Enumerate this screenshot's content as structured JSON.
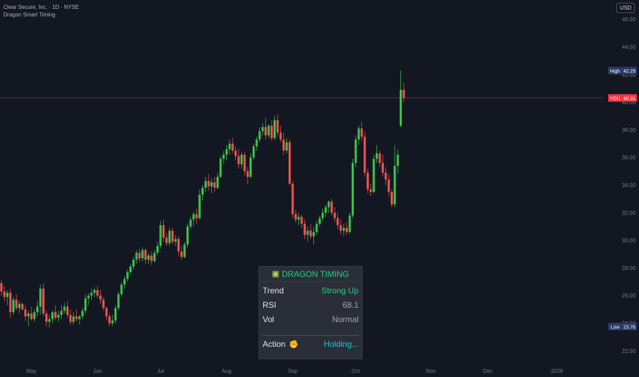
{
  "header": {
    "symbol_line": "Clear Secure, Inc. · 1D · NYSE",
    "indicator_name": "Dragon Smart Timing",
    "currency_label": "USD"
  },
  "colors": {
    "background": "#131722",
    "up": "#26a69a",
    "up_bright": "#3cc24a",
    "down": "#ef5350",
    "grid_text": "#787b86",
    "high_tag": "#2a3b68",
    "you_tag": "#f23645",
    "low_tag": "#2a3b68"
  },
  "price_tags": [
    {
      "label": "High",
      "value": "42.29",
      "kind": "high"
    },
    {
      "label": "YOU",
      "value": "40.31",
      "kind": "you"
    },
    {
      "label": "Low",
      "value": "23.76",
      "kind": "low"
    }
  ],
  "panel": {
    "title": "DRAGON TIMING",
    "title_icon": "dragon-icon",
    "rows": [
      {
        "key": "Trend",
        "value": "Strong Up",
        "color": "#26d07c"
      },
      {
        "key": "RSI",
        "value": "68.1",
        "color": "#a3a6af"
      },
      {
        "key": "Vol",
        "value": "Normal",
        "color": "#a3a6af"
      }
    ],
    "action_key": "Action",
    "action_icon": "raised-fist-icon",
    "action_value": "Holding...",
    "action_color": "#22c7d6"
  },
  "chart_data": {
    "type": "candlestick",
    "title": "Clear Secure, Inc. · 1D · NYSE",
    "ylim": [
      21,
      47.4
    ],
    "y_ticks": [
      22,
      24,
      26,
      28,
      30,
      32,
      34,
      36,
      38,
      40,
      42,
      44,
      46
    ],
    "x_ticks": [
      "May",
      "Jun",
      "Jul",
      "Aug",
      "Sep",
      "Oct",
      "Nov",
      "Dec",
      "2026"
    ],
    "x_tick_index": [
      10,
      32,
      53,
      75,
      97,
      118,
      143,
      162,
      185
    ],
    "grid": false,
    "last_price": 40.31,
    "high": 42.29,
    "low": 23.76,
    "ohlc": [
      [
        26.9,
        27.1,
        26.0,
        26.3
      ],
      [
        26.3,
        26.7,
        25.6,
        25.9
      ],
      [
        25.9,
        26.4,
        25.3,
        26.2
      ],
      [
        26.2,
        26.5,
        24.4,
        24.8
      ],
      [
        24.8,
        25.9,
        24.6,
        25.7
      ],
      [
        25.7,
        26.1,
        24.9,
        25.1
      ],
      [
        25.1,
        25.6,
        24.7,
        25.4
      ],
      [
        25.4,
        25.5,
        24.9,
        25.0
      ],
      [
        25.0,
        25.3,
        24.2,
        24.5
      ],
      [
        24.5,
        24.9,
        23.8,
        24.7
      ],
      [
        24.7,
        25.2,
        24.2,
        24.3
      ],
      [
        24.3,
        25.0,
        24.1,
        24.8
      ],
      [
        24.8,
        25.6,
        24.5,
        25.2
      ],
      [
        25.2,
        26.8,
        24.6,
        26.5
      ],
      [
        26.5,
        26.9,
        24.5,
        24.7
      ],
      [
        24.7,
        24.9,
        23.8,
        24.1
      ],
      [
        24.1,
        24.6,
        23.7,
        24.3
      ],
      [
        24.3,
        24.9,
        24.0,
        24.8
      ],
      [
        24.8,
        25.3,
        24.2,
        24.4
      ],
      [
        24.4,
        24.9,
        24.1,
        24.6
      ],
      [
        24.6,
        25.3,
        24.3,
        24.9
      ],
      [
        24.9,
        25.5,
        24.7,
        25.2
      ],
      [
        25.2,
        25.6,
        24.4,
        24.6
      ],
      [
        24.6,
        25.0,
        23.9,
        24.1
      ],
      [
        24.1,
        24.8,
        23.9,
        24.5
      ],
      [
        24.5,
        25.0,
        24.1,
        24.3
      ],
      [
        24.3,
        24.6,
        23.9,
        24.5
      ],
      [
        24.5,
        25.1,
        24.3,
        24.9
      ],
      [
        24.9,
        26.1,
        24.7,
        25.8
      ],
      [
        25.8,
        26.2,
        25.3,
        26.0
      ],
      [
        26.0,
        26.5,
        25.7,
        26.2
      ],
      [
        26.2,
        26.6,
        25.9,
        26.4
      ],
      [
        26.4,
        26.7,
        25.8,
        26.0
      ],
      [
        26.0,
        26.4,
        25.4,
        25.7
      ],
      [
        25.7,
        25.9,
        24.9,
        25.1
      ],
      [
        25.1,
        25.2,
        24.2,
        24.5
      ],
      [
        24.5,
        24.7,
        23.8,
        24.0
      ],
      [
        24.0,
        24.6,
        23.8,
        24.2
      ],
      [
        24.2,
        25.3,
        24.0,
        25.1
      ],
      [
        25.1,
        26.3,
        24.9,
        26.1
      ],
      [
        26.1,
        27.0,
        25.9,
        26.8
      ],
      [
        26.8,
        27.4,
        26.5,
        27.2
      ],
      [
        27.2,
        27.9,
        27.0,
        27.7
      ],
      [
        27.7,
        28.3,
        27.5,
        28.1
      ],
      [
        28.1,
        28.8,
        27.9,
        28.6
      ],
      [
        28.6,
        29.3,
        28.3,
        29.1
      ],
      [
        29.1,
        29.4,
        28.4,
        28.7
      ],
      [
        28.7,
        29.5,
        28.5,
        29.3
      ],
      [
        29.3,
        29.4,
        28.3,
        28.6
      ],
      [
        28.6,
        29.1,
        28.3,
        28.9
      ],
      [
        28.9,
        29.2,
        28.2,
        28.5
      ],
      [
        28.5,
        29.3,
        28.4,
        29.1
      ],
      [
        29.1,
        29.9,
        28.9,
        29.6
      ],
      [
        29.6,
        31.4,
        29.4,
        31.1
      ],
      [
        31.1,
        31.5,
        29.9,
        30.2
      ],
      [
        30.2,
        30.5,
        29.6,
        29.8
      ],
      [
        29.8,
        30.9,
        29.6,
        30.7
      ],
      [
        30.7,
        30.9,
        29.7,
        29.9
      ],
      [
        29.9,
        30.4,
        29.6,
        30.1
      ],
      [
        30.1,
        30.3,
        28.9,
        29.2
      ],
      [
        29.2,
        29.6,
        28.6,
        28.8
      ],
      [
        28.8,
        29.9,
        28.7,
        29.7
      ],
      [
        29.7,
        31.2,
        29.5,
        31.0
      ],
      [
        31.0,
        31.7,
        30.8,
        31.5
      ],
      [
        31.5,
        32.1,
        31.0,
        31.9
      ],
      [
        31.9,
        32.3,
        31.2,
        31.6
      ],
      [
        31.6,
        33.7,
        31.5,
        33.3
      ],
      [
        33.3,
        34.0,
        32.9,
        33.8
      ],
      [
        33.8,
        34.6,
        33.5,
        34.3
      ],
      [
        34.3,
        34.8,
        33.6,
        33.9
      ],
      [
        33.9,
        34.5,
        33.4,
        34.2
      ],
      [
        34.2,
        34.6,
        33.5,
        33.8
      ],
      [
        33.8,
        34.9,
        33.7,
        34.6
      ],
      [
        34.6,
        36.1,
        34.5,
        35.9
      ],
      [
        35.9,
        36.5,
        35.5,
        36.2
      ],
      [
        36.2,
        36.9,
        35.8,
        36.6
      ],
      [
        36.6,
        37.3,
        36.2,
        37.0
      ],
      [
        37.0,
        37.4,
        36.3,
        36.5
      ],
      [
        36.5,
        36.8,
        35.8,
        36.1
      ],
      [
        36.1,
        36.6,
        35.2,
        35.5
      ],
      [
        35.5,
        36.4,
        35.2,
        36.2
      ],
      [
        36.2,
        36.4,
        34.7,
        35.0
      ],
      [
        35.0,
        35.3,
        34.1,
        34.6
      ],
      [
        34.6,
        36.3,
        34.5,
        36.0
      ],
      [
        36.0,
        37.0,
        35.8,
        36.8
      ],
      [
        36.8,
        37.5,
        36.5,
        37.3
      ],
      [
        37.3,
        38.2,
        37.1,
        37.9
      ],
      [
        37.9,
        38.5,
        37.6,
        38.2
      ],
      [
        38.2,
        38.9,
        37.3,
        37.6
      ],
      [
        37.6,
        38.4,
        37.4,
        38.3
      ],
      [
        38.3,
        38.7,
        37.2,
        37.4
      ],
      [
        37.4,
        39.0,
        37.3,
        38.7
      ],
      [
        38.7,
        39.1,
        37.5,
        37.8
      ],
      [
        37.8,
        38.3,
        37.1,
        37.3
      ],
      [
        37.3,
        37.8,
        36.2,
        36.5
      ],
      [
        36.5,
        37.4,
        36.3,
        37.1
      ],
      [
        37.1,
        37.3,
        34.0,
        34.1
      ],
      [
        34.1,
        34.3,
        31.6,
        31.9
      ],
      [
        31.9,
        32.2,
        31.3,
        31.5
      ],
      [
        31.5,
        32.0,
        31.1,
        31.7
      ],
      [
        31.7,
        31.9,
        30.9,
        31.2
      ],
      [
        31.2,
        31.5,
        30.1,
        30.4
      ],
      [
        30.4,
        31.0,
        29.9,
        30.7
      ],
      [
        30.7,
        31.2,
        30.1,
        30.3
      ],
      [
        30.3,
        31.0,
        29.7,
        30.6
      ],
      [
        30.6,
        31.4,
        30.4,
        31.2
      ],
      [
        31.2,
        31.8,
        31.0,
        31.6
      ],
      [
        31.6,
        32.3,
        31.4,
        32.0
      ],
      [
        32.0,
        32.6,
        31.7,
        32.4
      ],
      [
        32.4,
        32.9,
        32.0,
        32.8
      ],
      [
        32.8,
        33.0,
        31.8,
        32.0
      ],
      [
        32.0,
        32.4,
        31.3,
        31.6
      ],
      [
        31.6,
        32.0,
        30.8,
        31.1
      ],
      [
        31.1,
        31.5,
        30.4,
        30.7
      ],
      [
        30.7,
        31.2,
        30.3,
        30.9
      ],
      [
        30.9,
        31.3,
        30.4,
        30.6
      ],
      [
        30.6,
        32.0,
        30.5,
        31.8
      ],
      [
        31.8,
        35.9,
        31.6,
        35.6
      ],
      [
        35.6,
        37.6,
        35.3,
        37.3
      ],
      [
        37.3,
        38.3,
        36.9,
        38.1
      ],
      [
        38.1,
        38.6,
        37.2,
        37.5
      ],
      [
        37.5,
        37.9,
        34.6,
        34.9
      ],
      [
        34.9,
        35.2,
        33.4,
        33.7
      ],
      [
        33.7,
        34.1,
        33.2,
        33.5
      ],
      [
        33.5,
        36.2,
        33.4,
        35.9
      ],
      [
        35.9,
        36.9,
        35.6,
        36.3
      ],
      [
        36.3,
        36.5,
        35.3,
        35.6
      ],
      [
        35.6,
        36.2,
        34.6,
        34.9
      ],
      [
        34.9,
        35.3,
        34.0,
        34.4
      ],
      [
        34.4,
        34.8,
        33.2,
        33.5
      ],
      [
        33.5,
        33.7,
        32.4,
        32.6
      ],
      [
        32.6,
        36.9,
        32.4,
        35.4
      ],
      [
        35.4,
        36.6,
        34.8,
        36.2
      ],
      [
        38.3,
        42.29,
        38.2,
        40.9
      ],
      [
        40.9,
        41.4,
        40.0,
        40.31
      ]
    ]
  }
}
